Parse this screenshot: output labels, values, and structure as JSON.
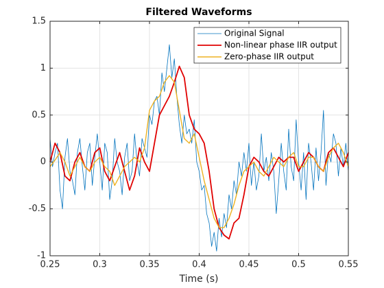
{
  "chart_data": {
    "type": "line",
    "title": "Filtered Waveforms",
    "x_label": "Time (s)",
    "xlim": [
      0.25,
      0.55
    ],
    "xticks": [
      0.25,
      0.3,
      0.35,
      0.4,
      0.45,
      0.5,
      0.55
    ],
    "ylim": [
      -1,
      1.5
    ],
    "yticks": [
      -1,
      -0.5,
      0,
      0.5,
      1,
      1.5
    ],
    "grid": true,
    "legend": "upper right",
    "series": [
      {
        "name": "Original Signal",
        "color": "#0072bd",
        "width": 0.8,
        "x": [
          0.25,
          0.2525,
          0.255,
          0.2575,
          0.26,
          0.2625,
          0.265,
          0.2675,
          0.27,
          0.2725,
          0.275,
          0.2775,
          0.28,
          0.2825,
          0.285,
          0.2875,
          0.29,
          0.2925,
          0.295,
          0.2975,
          0.3,
          0.3025,
          0.305,
          0.3075,
          0.31,
          0.3125,
          0.315,
          0.3175,
          0.32,
          0.3225,
          0.325,
          0.3275,
          0.33,
          0.3325,
          0.335,
          0.3375,
          0.34,
          0.3425,
          0.345,
          0.3475,
          0.35,
          0.3525,
          0.355,
          0.3575,
          0.36,
          0.3625,
          0.365,
          0.3675,
          0.37,
          0.3725,
          0.375,
          0.3775,
          0.38,
          0.3825,
          0.385,
          0.3875,
          0.39,
          0.3925,
          0.395,
          0.3975,
          0.4,
          0.4025,
          0.405,
          0.4075,
          0.41,
          0.4125,
          0.415,
          0.4175,
          0.42,
          0.4225,
          0.425,
          0.4275,
          0.43,
          0.4325,
          0.435,
          0.4375,
          0.44,
          0.4425,
          0.445,
          0.4475,
          0.45,
          0.4525,
          0.455,
          0.4575,
          0.46,
          0.4625,
          0.465,
          0.4675,
          0.47,
          0.4725,
          0.475,
          0.4775,
          0.48,
          0.4825,
          0.485,
          0.4875,
          0.49,
          0.4925,
          0.495,
          0.4975,
          0.5,
          0.5025,
          0.505,
          0.5075,
          0.51,
          0.5125,
          0.515,
          0.5175,
          0.52,
          0.5225,
          0.525,
          0.5275,
          0.53,
          0.5325,
          0.535,
          0.5375,
          0.54,
          0.5425,
          0.545,
          0.5475,
          0.55
        ],
        "values": [
          0.25,
          -0.05,
          0.1,
          0.2,
          -0.3,
          -0.5,
          0.05,
          0.25,
          -0.1,
          -0.2,
          -0.35,
          0.1,
          0.25,
          -0.05,
          -0.3,
          0.1,
          0.2,
          -0.25,
          0.05,
          0.3,
          0.0,
          -0.3,
          0.2,
          0.1,
          -0.4,
          -0.2,
          0.25,
          0.0,
          -0.1,
          -0.35,
          0.05,
          0.2,
          -0.2,
          -0.1,
          0.3,
          0.0,
          -0.15,
          0.25,
          0.15,
          0.05,
          0.5,
          0.4,
          0.65,
          0.7,
          0.5,
          0.95,
          0.75,
          1.0,
          1.25,
          0.9,
          1.1,
          0.7,
          0.4,
          0.2,
          0.5,
          0.3,
          0.35,
          0.2,
          0.45,
          0.0,
          -0.1,
          -0.3,
          -0.25,
          -0.55,
          -0.65,
          -0.9,
          -0.75,
          -0.95,
          -0.6,
          -0.8,
          -0.55,
          -0.7,
          -0.35,
          -0.5,
          -0.2,
          -0.35,
          0.0,
          -0.15,
          0.1,
          -0.1,
          0.2,
          -0.25,
          0.0,
          -0.3,
          -0.15,
          0.3,
          -0.1,
          0.05,
          -0.2,
          0.1,
          -0.1,
          -0.55,
          -0.2,
          0.2,
          -0.1,
          -0.3,
          0.35,
          -0.05,
          -0.2,
          0.45,
          0.0,
          -0.3,
          0.1,
          -0.4,
          0.2,
          0.0,
          -0.3,
          0.15,
          -0.2,
          0.1,
          0.55,
          -0.25,
          0.1,
          0.0,
          0.3,
          0.2,
          -0.15,
          0.15,
          -0.05,
          0.2,
          -0.1
        ]
      },
      {
        "name": "Non-linear phase IIR output",
        "color": "#e00000",
        "width": 1.8,
        "x": [
          0.25,
          0.255,
          0.26,
          0.265,
          0.27,
          0.275,
          0.28,
          0.285,
          0.29,
          0.295,
          0.3,
          0.305,
          0.31,
          0.315,
          0.32,
          0.325,
          0.33,
          0.335,
          0.34,
          0.345,
          0.35,
          0.355,
          0.36,
          0.365,
          0.37,
          0.375,
          0.38,
          0.385,
          0.39,
          0.395,
          0.4,
          0.405,
          0.41,
          0.415,
          0.42,
          0.425,
          0.43,
          0.435,
          0.44,
          0.445,
          0.45,
          0.455,
          0.46,
          0.465,
          0.47,
          0.475,
          0.48,
          0.485,
          0.49,
          0.495,
          0.5,
          0.505,
          0.51,
          0.515,
          0.52,
          0.525,
          0.53,
          0.535,
          0.54,
          0.545,
          0.55
        ],
        "values": [
          0.0,
          0.2,
          0.1,
          -0.15,
          -0.2,
          0.0,
          0.1,
          -0.05,
          -0.1,
          0.1,
          0.15,
          -0.1,
          -0.2,
          -0.05,
          0.1,
          -0.1,
          -0.3,
          -0.15,
          0.15,
          0.0,
          -0.1,
          0.2,
          0.5,
          0.6,
          0.7,
          0.85,
          1.02,
          0.9,
          0.5,
          0.35,
          0.3,
          0.2,
          -0.1,
          -0.5,
          -0.7,
          -0.78,
          -0.82,
          -0.65,
          -0.6,
          -0.35,
          -0.05,
          0.05,
          0.0,
          -0.1,
          -0.15,
          -0.05,
          0.05,
          0.0,
          0.05,
          0.05,
          -0.1,
          0.0,
          0.1,
          0.05,
          -0.05,
          -0.1,
          0.1,
          0.15,
          0.05,
          -0.05,
          0.1
        ]
      },
      {
        "name": "Zero-phase IIR output",
        "color": "#edb120",
        "width": 1.4,
        "x": [
          0.25,
          0.255,
          0.26,
          0.265,
          0.27,
          0.275,
          0.28,
          0.285,
          0.29,
          0.295,
          0.3,
          0.305,
          0.31,
          0.315,
          0.32,
          0.325,
          0.33,
          0.335,
          0.34,
          0.345,
          0.35,
          0.355,
          0.36,
          0.365,
          0.37,
          0.375,
          0.38,
          0.385,
          0.39,
          0.395,
          0.4,
          0.405,
          0.41,
          0.415,
          0.42,
          0.425,
          0.43,
          0.435,
          0.44,
          0.445,
          0.45,
          0.455,
          0.46,
          0.465,
          0.47,
          0.475,
          0.48,
          0.485,
          0.49,
          0.495,
          0.5,
          0.505,
          0.51,
          0.515,
          0.52,
          0.525,
          0.53,
          0.535,
          0.54,
          0.545,
          0.55
        ],
        "values": [
          -0.05,
          0.02,
          0.1,
          0.0,
          -0.15,
          -0.05,
          0.05,
          -0.05,
          -0.1,
          0.0,
          0.05,
          -0.05,
          -0.1,
          -0.25,
          -0.15,
          -0.05,
          0.0,
          0.05,
          0.0,
          0.15,
          0.55,
          0.65,
          0.7,
          0.85,
          0.92,
          0.85,
          0.55,
          0.25,
          0.2,
          0.3,
          0.05,
          -0.2,
          -0.4,
          -0.6,
          -0.7,
          -0.7,
          -0.6,
          -0.45,
          -0.25,
          -0.1,
          -0.05,
          0.0,
          -0.1,
          -0.15,
          -0.05,
          0.05,
          0.0,
          -0.05,
          0.05,
          0.1,
          -0.05,
          -0.05,
          0.05,
          0.05,
          -0.05,
          -0.1,
          0.05,
          0.15,
          0.2,
          0.1,
          -0.05
        ]
      }
    ]
  }
}
